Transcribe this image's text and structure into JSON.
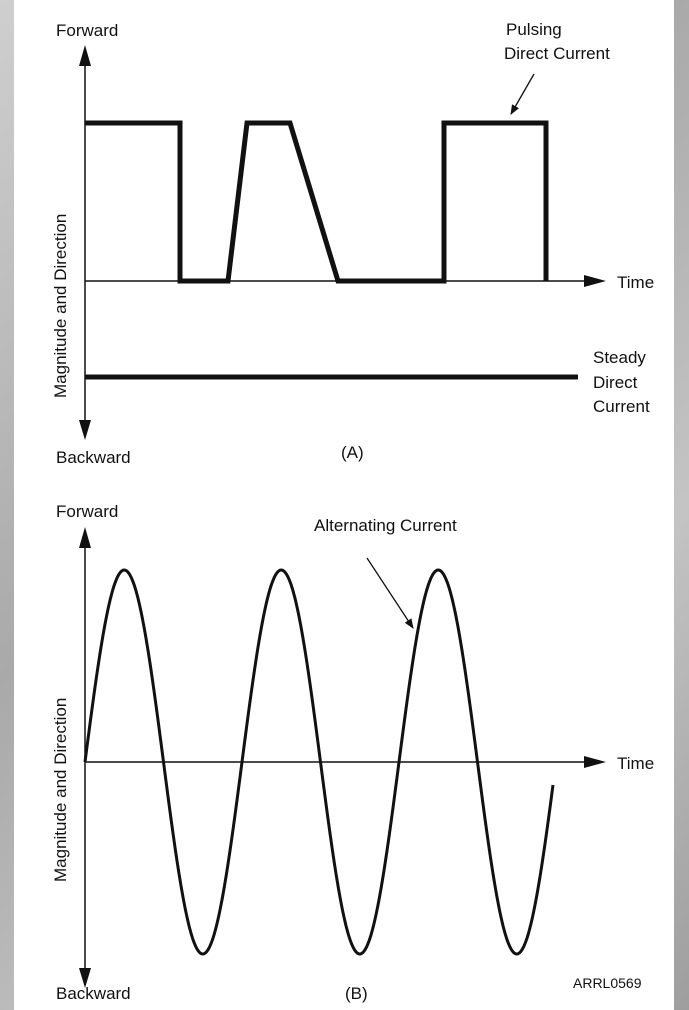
{
  "panel_a": {
    "forward": "Forward",
    "backward": "Backward",
    "ylabel": "Magnitude and Direction",
    "time": "Time",
    "pulsing_l1": "Pulsing",
    "pulsing_l2": "Direct Current",
    "steady_l1": "Steady",
    "steady_l2": "Direct",
    "steady_l3": "Current",
    "caption": "(A)"
  },
  "panel_b": {
    "forward": "Forward",
    "backward": "Backward",
    "ylabel": "Magnitude and Direction",
    "time": "Time",
    "ac_label": "Alternating Current",
    "caption": "(B)",
    "figure_id": "ARRL0569"
  },
  "colors": {
    "ink": "#111111",
    "background": "#ffffff",
    "frame": "#b5b5b5"
  }
}
